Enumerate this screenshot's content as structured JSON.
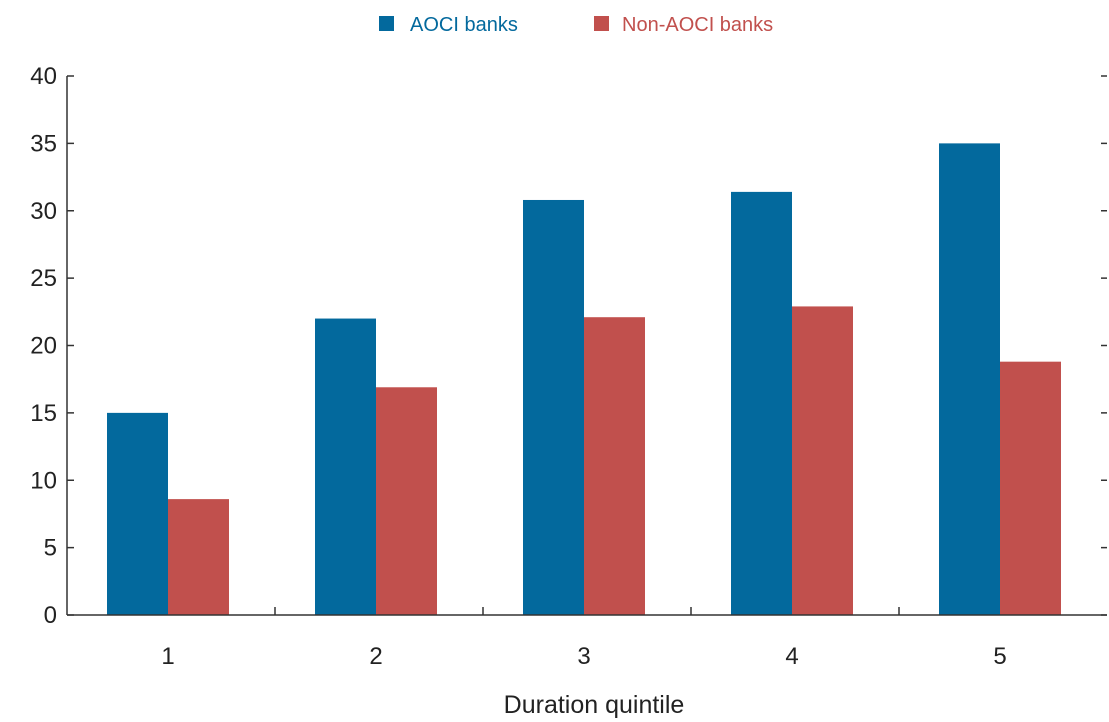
{
  "chart_data": {
    "type": "bar",
    "categories": [
      "1",
      "2",
      "3",
      "4",
      "5"
    ],
    "series": [
      {
        "name": "AOCI banks",
        "color": "#03699d",
        "values": [
          15,
          22,
          30.8,
          31.4,
          35
        ]
      },
      {
        "name": "Non-AOCI banks",
        "color": "#c1504d",
        "values": [
          8.6,
          16.9,
          22.1,
          22.9,
          18.8
        ]
      }
    ],
    "xlabel": "Duration quintile",
    "ylabel": "",
    "ylim": [
      0,
      40
    ],
    "yticks": [
      "0",
      "5",
      "10",
      "15",
      "20",
      "25",
      "30",
      "35",
      "40"
    ],
    "grid": false,
    "legend_position": "top-center"
  }
}
